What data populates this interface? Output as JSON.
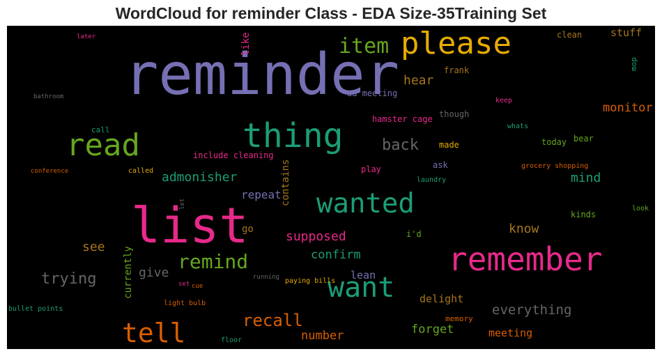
{
  "title": "WordCloud for reminder Class - EDA Size-35Training Set",
  "chart_data": {
    "type": "wordcloud",
    "title": "WordCloud for reminder Class - EDA Size-35Training Set",
    "background": "#000000",
    "words": [
      {
        "text": "reminder",
        "color": "#7570b3"
      },
      {
        "text": "list",
        "color": "#e7298a"
      },
      {
        "text": "please",
        "color": "#e6ab02"
      },
      {
        "text": "remember",
        "color": "#e7298a"
      },
      {
        "text": "thing",
        "color": "#1b9e77"
      },
      {
        "text": "read",
        "color": "#66a61e"
      },
      {
        "text": "wanted",
        "color": "#1b9e77"
      },
      {
        "text": "want",
        "color": "#1b9e77"
      },
      {
        "text": "tell",
        "color": "#d95f02"
      },
      {
        "text": "item",
        "color": "#66a61e"
      },
      {
        "text": "remind",
        "color": "#66a61e"
      },
      {
        "text": "recall",
        "color": "#d95f02"
      },
      {
        "text": "trying",
        "color": "#666666"
      },
      {
        "text": "back",
        "color": "#666666"
      },
      {
        "text": "everything",
        "color": "#666666"
      },
      {
        "text": "admonisher",
        "color": "#1b9e77"
      },
      {
        "text": "supposed",
        "color": "#e7298a"
      },
      {
        "text": "monitor",
        "color": "#d95f02"
      },
      {
        "text": "mind",
        "color": "#1b9e77"
      },
      {
        "text": "know",
        "color": "#a6761d"
      },
      {
        "text": "hear",
        "color": "#a6761d"
      },
      {
        "text": "see",
        "color": "#a6761d"
      },
      {
        "text": "give",
        "color": "#666666"
      },
      {
        "text": "confirm",
        "color": "#1b9e77"
      },
      {
        "text": "forget",
        "color": "#66a61e"
      },
      {
        "text": "number",
        "color": "#d95f02"
      },
      {
        "text": "meeting",
        "color": "#d95f02"
      },
      {
        "text": "delight",
        "color": "#a6761d"
      },
      {
        "text": "stuff",
        "color": "#a6761d"
      },
      {
        "text": "repeat",
        "color": "#7570b3"
      },
      {
        "text": "contains",
        "color": "#a6761d"
      },
      {
        "text": "currently",
        "color": "#66a61e"
      },
      {
        "text": "like",
        "color": "#e7298a"
      },
      {
        "text": "lean",
        "color": "#7570b3"
      },
      {
        "text": "go",
        "color": "#a6761d"
      },
      {
        "text": "include cleaning",
        "color": "#e7298a"
      },
      {
        "text": "hamster cage",
        "color": "#e7298a"
      },
      {
        "text": "aa meeting",
        "color": "#7570b3"
      },
      {
        "text": "clean",
        "color": "#a6761d"
      },
      {
        "text": "frank",
        "color": "#a6761d"
      },
      {
        "text": "though",
        "color": "#666666"
      },
      {
        "text": "today",
        "color": "#66a61e"
      },
      {
        "text": "bear",
        "color": "#66a61e"
      },
      {
        "text": "made",
        "color": "#e6ab02"
      },
      {
        "text": "ask",
        "color": "#7570b3"
      },
      {
        "text": "play",
        "color": "#e7298a"
      },
      {
        "text": "call",
        "color": "#1b9e77"
      },
      {
        "text": "i'd",
        "color": "#66a61e"
      },
      {
        "text": "kinds",
        "color": "#66a61e"
      },
      {
        "text": "mop",
        "color": "#1b9e77"
      },
      {
        "text": "keep",
        "color": "#e7298a"
      },
      {
        "text": "whats",
        "color": "#1b9e77"
      },
      {
        "text": "grocery shopping",
        "color": "#d95f02"
      },
      {
        "text": "laundry",
        "color": "#1b9e77"
      },
      {
        "text": "look",
        "color": "#66a61e"
      },
      {
        "text": "later",
        "color": "#e7298a"
      },
      {
        "text": "bathroom",
        "color": "#666666"
      },
      {
        "text": "conference",
        "color": "#d95f02"
      },
      {
        "text": "called",
        "color": "#e6ab02"
      },
      {
        "text": "let",
        "color": "#666666"
      },
      {
        "text": "running",
        "color": "#666666"
      },
      {
        "text": "paying bills",
        "color": "#e6ab02"
      },
      {
        "text": "set",
        "color": "#e7298a"
      },
      {
        "text": "cue",
        "color": "#d95f02"
      },
      {
        "text": "light bulb",
        "color": "#d95f02"
      },
      {
        "text": "memory",
        "color": "#d95f02"
      },
      {
        "text": "floor",
        "color": "#1b9e77"
      },
      {
        "text": "bullet points",
        "color": "#1b9e77"
      }
    ]
  }
}
